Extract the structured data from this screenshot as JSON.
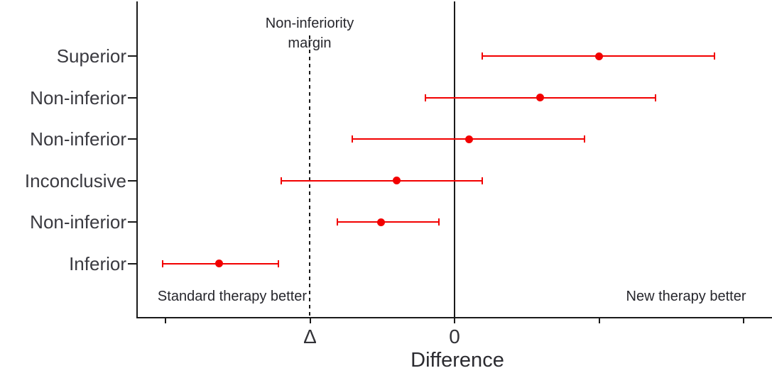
{
  "chart_data": {
    "type": "forest",
    "title": "",
    "xlabel": "Difference",
    "ylabel": "",
    "xlim": [
      -2.2,
      2.2
    ],
    "grid": false,
    "legend": false,
    "unit_note": "x values expressed in units of the non-inferiority margin; dashed line at Δ = -1, solid line at 0",
    "x_ticks": [
      {
        "value": -2,
        "label": ""
      },
      {
        "value": -1,
        "label": "Δ"
      },
      {
        "value": 0,
        "label": "0"
      },
      {
        "value": 1,
        "label": ""
      },
      {
        "value": 2,
        "label": ""
      }
    ],
    "rows": [
      {
        "label": "Superior",
        "estimate": 1.0,
        "ci_low": 0.19,
        "ci_high": 1.8
      },
      {
        "label": "Non-inferior",
        "estimate": 0.59,
        "ci_low": -0.2,
        "ci_high": 1.39
      },
      {
        "label": "Non-inferior",
        "estimate": 0.1,
        "ci_low": -0.71,
        "ci_high": 0.9
      },
      {
        "label": "Inconclusive",
        "estimate": -0.4,
        "ci_low": -1.2,
        "ci_high": 0.19
      },
      {
        "label": "Non-inferior",
        "estimate": -0.51,
        "ci_low": -0.81,
        "ci_high": -0.11
      },
      {
        "label": "Inferior",
        "estimate": -1.63,
        "ci_low": -2.02,
        "ci_high": -1.22
      }
    ],
    "reference_lines": [
      {
        "x": -1,
        "style": "dashed",
        "meaning": "non-inferiority margin"
      },
      {
        "x": 0,
        "style": "solid",
        "meaning": "no difference"
      }
    ],
    "annotations": {
      "margin_line1": "Non-inferiority",
      "margin_line2": "margin",
      "left": "Standard therapy better",
      "right": "New therapy better"
    },
    "colors": {
      "interval": "#f20000",
      "axis": "#1a1a1a",
      "label_text": "#3a3a40",
      "annotation_text": "#26262c"
    }
  }
}
